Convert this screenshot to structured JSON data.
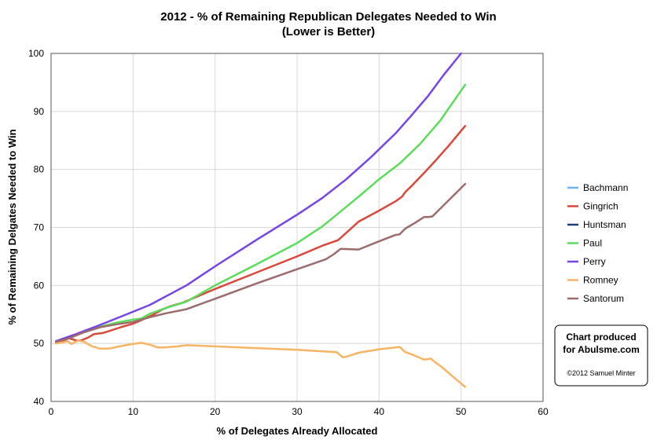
{
  "chart_data": {
    "type": "line",
    "title": "2012 - % of Remaining Republican Delegates Needed to Win",
    "subtitle": "(Lower is Better)",
    "xlabel": "% of Delegates Already Allocated",
    "ylabel": "% of Remaining Delgates Needed to Win",
    "xlim": [
      0,
      60
    ],
    "ylim": [
      40,
      100
    ],
    "x_ticks": [
      0,
      10,
      20,
      30,
      40,
      50,
      60
    ],
    "y_ticks": [
      40,
      50,
      60,
      70,
      80,
      90,
      100
    ],
    "grid": true,
    "legend_position": "right",
    "series": [
      {
        "name": "Bachmann",
        "color": "#6cb4f0",
        "points": []
      },
      {
        "name": "Gingrich",
        "color": "#d9483b",
        "points": [
          [
            0.6,
            50.2
          ],
          [
            1.5,
            50.5
          ],
          [
            2.2,
            50.9
          ],
          [
            3.1,
            50.5
          ],
          [
            3.6,
            50.5
          ],
          [
            4.5,
            51.0
          ],
          [
            5.2,
            51.6
          ],
          [
            6.3,
            51.8
          ],
          [
            7.0,
            52.1
          ],
          [
            8.5,
            52.8
          ],
          [
            10.0,
            53.4
          ],
          [
            11.0,
            54.0
          ],
          [
            12.5,
            55.0
          ],
          [
            13.5,
            55.8
          ],
          [
            14.5,
            56.4
          ],
          [
            16.0,
            57.0
          ],
          [
            17.0,
            57.6
          ],
          [
            20.0,
            59.4
          ],
          [
            25.0,
            62.2
          ],
          [
            30.0,
            65.0
          ],
          [
            33.0,
            66.8
          ],
          [
            35.0,
            67.8
          ],
          [
            36.5,
            69.7
          ],
          [
            37.5,
            71.0
          ],
          [
            40.0,
            72.9
          ],
          [
            42.0,
            74.5
          ],
          [
            42.8,
            75.3
          ],
          [
            43.2,
            76.1
          ],
          [
            44.0,
            77.2
          ],
          [
            45.5,
            79.4
          ],
          [
            47.0,
            81.7
          ],
          [
            48.5,
            84.1
          ],
          [
            50.5,
            87.5
          ]
        ]
      },
      {
        "name": "Huntsman",
        "color": "#1f3f7a",
        "points": []
      },
      {
        "name": "Paul",
        "color": "#5cdc5c",
        "points": [
          [
            0.6,
            50.3
          ],
          [
            2.0,
            50.9
          ],
          [
            4.0,
            51.9
          ],
          [
            6.0,
            52.9
          ],
          [
            8.0,
            53.6
          ],
          [
            10.0,
            54.1
          ],
          [
            11.0,
            54.3
          ],
          [
            12.0,
            55.1
          ],
          [
            14.0,
            56.1
          ],
          [
            16.5,
            57.2
          ],
          [
            20.0,
            60.0
          ],
          [
            25.0,
            63.6
          ],
          [
            30.0,
            67.3
          ],
          [
            33.0,
            70.1
          ],
          [
            35.0,
            72.4
          ],
          [
            37.5,
            75.3
          ],
          [
            40.0,
            78.3
          ],
          [
            42.5,
            81.0
          ],
          [
            45.0,
            84.4
          ],
          [
            47.5,
            88.5
          ],
          [
            50.5,
            94.6
          ]
        ]
      },
      {
        "name": "Perry",
        "color": "#7744e6",
        "points": [
          [
            0.6,
            50.4
          ],
          [
            3.0,
            51.6
          ],
          [
            6.0,
            53.2
          ],
          [
            9.0,
            54.9
          ],
          [
            12.0,
            56.6
          ],
          [
            16.5,
            60.0
          ],
          [
            20.0,
            63.3
          ],
          [
            25.0,
            67.8
          ],
          [
            30.0,
            72.2
          ],
          [
            33.0,
            75.0
          ],
          [
            36.0,
            78.3
          ],
          [
            39.0,
            82.1
          ],
          [
            42.0,
            86.2
          ],
          [
            44.0,
            89.4
          ],
          [
            46.0,
            92.7
          ],
          [
            48.0,
            96.5
          ],
          [
            50.0,
            100.0
          ]
        ]
      },
      {
        "name": "Romney",
        "color": "#f7b463",
        "points": [
          [
            0.6,
            50.0
          ],
          [
            1.5,
            50.2
          ],
          [
            2.0,
            50.4
          ],
          [
            2.5,
            49.9
          ],
          [
            3.3,
            50.5
          ],
          [
            4.0,
            50.3
          ],
          [
            5.0,
            49.5
          ],
          [
            6.0,
            49.1
          ],
          [
            7.0,
            49.1
          ],
          [
            8.0,
            49.4
          ],
          [
            9.5,
            49.8
          ],
          [
            11.0,
            50.1
          ],
          [
            12.0,
            49.8
          ],
          [
            13.0,
            49.3
          ],
          [
            13.8,
            49.3
          ],
          [
            14.5,
            49.4
          ],
          [
            15.5,
            49.5
          ],
          [
            16.5,
            49.7
          ],
          [
            20.0,
            49.5
          ],
          [
            25.0,
            49.2
          ],
          [
            30.0,
            48.9
          ],
          [
            34.8,
            48.5
          ],
          [
            35.6,
            47.6
          ],
          [
            36.0,
            47.7
          ],
          [
            37.5,
            48.4
          ],
          [
            40.0,
            49.0
          ],
          [
            42.0,
            49.3
          ],
          [
            42.5,
            49.4
          ],
          [
            43.2,
            48.5
          ],
          [
            44.0,
            48.1
          ],
          [
            45.0,
            47.5
          ],
          [
            45.5,
            47.2
          ],
          [
            46.0,
            47.3
          ],
          [
            46.3,
            47.4
          ],
          [
            46.8,
            46.8
          ],
          [
            47.6,
            46.0
          ],
          [
            49.0,
            44.3
          ],
          [
            50.5,
            42.5
          ]
        ]
      },
      {
        "name": "Santorum",
        "color": "#9c6c6c",
        "points": [
          [
            0.6,
            50.3
          ],
          [
            2.0,
            50.8
          ],
          [
            4.0,
            51.9
          ],
          [
            6.0,
            52.8
          ],
          [
            8.0,
            53.3
          ],
          [
            10.0,
            53.7
          ],
          [
            12.0,
            54.5
          ],
          [
            14.0,
            55.2
          ],
          [
            16.5,
            55.9
          ],
          [
            20.0,
            57.7
          ],
          [
            25.0,
            60.3
          ],
          [
            30.0,
            62.8
          ],
          [
            33.5,
            64.5
          ],
          [
            34.5,
            65.4
          ],
          [
            35.3,
            66.3
          ],
          [
            37.5,
            66.2
          ],
          [
            40.0,
            67.6
          ],
          [
            42.0,
            68.7
          ],
          [
            42.5,
            68.8
          ],
          [
            43.2,
            69.8
          ],
          [
            44.5,
            70.9
          ],
          [
            45.5,
            71.8
          ],
          [
            46.0,
            71.8
          ],
          [
            46.5,
            71.9
          ],
          [
            48.0,
            74.0
          ],
          [
            50.5,
            77.5
          ]
        ]
      }
    ]
  },
  "credit": {
    "line1": "Chart produced",
    "line2": "for Abulsme.com",
    "line3": "©2012 Samuel Minter"
  }
}
